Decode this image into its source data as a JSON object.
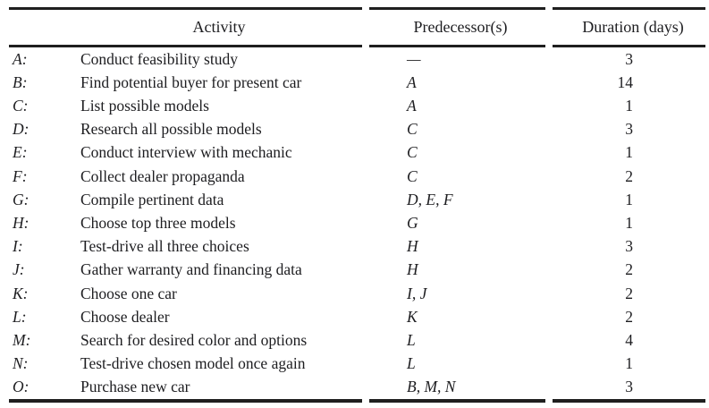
{
  "table": {
    "headers": {
      "activity": "Activity",
      "predecessors": "Predecessor(s)",
      "duration": "Duration (days)"
    },
    "rows": [
      {
        "label": "A:",
        "activity": "Conduct feasibility study",
        "predecessors": "—",
        "duration": 3
      },
      {
        "label": "B:",
        "activity": "Find potential buyer for present car",
        "predecessors": "A",
        "duration": 14
      },
      {
        "label": "C:",
        "activity": "List possible models",
        "predecessors": "A",
        "duration": 1
      },
      {
        "label": "D:",
        "activity": "Research all possible models",
        "predecessors": "C",
        "duration": 3
      },
      {
        "label": "E:",
        "activity": "Conduct interview with mechanic",
        "predecessors": "C",
        "duration": 1
      },
      {
        "label": "F:",
        "activity": "Collect dealer propaganda",
        "predecessors": "C",
        "duration": 2
      },
      {
        "label": "G:",
        "activity": "Compile pertinent data",
        "predecessors": "D, E, F",
        "duration": 1
      },
      {
        "label": "H:",
        "activity": "Choose top three models",
        "predecessors": "G",
        "duration": 1
      },
      {
        "label": "I:",
        "activity": "Test-drive all three choices",
        "predecessors": "H",
        "duration": 3
      },
      {
        "label": "J:",
        "activity": "Gather warranty and financing data",
        "predecessors": "H",
        "duration": 2
      },
      {
        "label": "K:",
        "activity": "Choose one car",
        "predecessors": "I, J",
        "duration": 2
      },
      {
        "label": "L:",
        "activity": "Choose dealer",
        "predecessors": "K",
        "duration": 2
      },
      {
        "label": "M:",
        "activity": "Search for desired color and options",
        "predecessors": "L",
        "duration": 4
      },
      {
        "label": "N:",
        "activity": "Test-drive chosen model once again",
        "predecessors": "L",
        "duration": 1
      },
      {
        "label": "O:",
        "activity": "Purchase new car",
        "predecessors": "B, M, N",
        "duration": 3
      }
    ]
  },
  "colors": {
    "text": "#1d1d20",
    "rule": "#1f1f1f",
    "background": "#ffffff"
  }
}
